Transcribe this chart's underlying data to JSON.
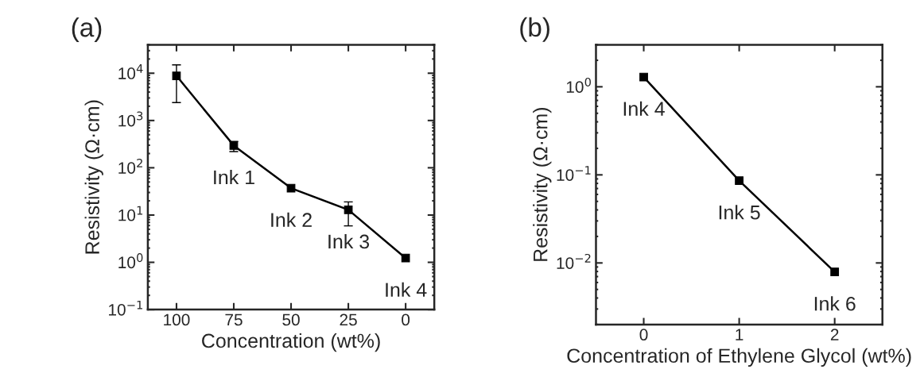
{
  "chart_data": [
    {
      "type": "line",
      "title": "(a)",
      "xlabel": "Concentration (wt%)",
      "ylabel": "Resistivity (Ω·cm)",
      "log": "y",
      "marker": "square",
      "line_style": "solid",
      "grid": false,
      "x": [
        100,
        75,
        50,
        25,
        0
      ],
      "series": [
        {
          "color": "#000000",
          "values": [
            8800,
            295,
            37,
            12.9,
            1.23
          ],
          "errors": [
            [
              2400,
              15000
            ],
            [
              220,
              360
            ],
            null,
            [
              5.9,
              19
            ],
            null
          ]
        }
      ],
      "xlim": [
        112.5,
        -12.5
      ],
      "xticks": [
        100,
        75,
        50,
        25,
        0
      ],
      "ylim": [
        0.1,
        40000
      ],
      "yticks": [
        {
          "value": 0.1,
          "label": "10$^{−1}$"
        },
        {
          "value": 1,
          "label": "10$^{0}$"
        },
        {
          "value": 10,
          "label": "10$^{1}$"
        },
        {
          "value": 100,
          "label": "10$^{2}$"
        },
        {
          "value": 1000,
          "label": "10$^{3}$"
        },
        {
          "value": 10000,
          "label": "10$^{4}$"
        }
      ],
      "annotations": [
        {
          "text": "Ink 1",
          "x": 75,
          "y": 295
        },
        {
          "text": "Ink 2",
          "x": 50,
          "y": 37
        },
        {
          "text": "Ink 3",
          "x": 25,
          "y": 12.9
        },
        {
          "text": "Ink 4",
          "x": 0,
          "y": 1.23
        }
      ]
    },
    {
      "type": "line",
      "title": "(b)",
      "xlabel": "Concentration of Ethylene Glycol (wt%)",
      "ylabel": "Resistivity (Ω·cm)",
      "log": "y",
      "marker": "square",
      "line_style": "solid",
      "grid": false,
      "x": [
        0,
        1,
        2
      ],
      "series": [
        {
          "color": "#000000",
          "values": [
            1.29,
            0.086,
            0.0079
          ]
        }
      ],
      "xlim": [
        -0.5,
        2.5
      ],
      "xticks": [
        0,
        1,
        2
      ],
      "ylim": [
        0.002,
        3
      ],
      "yticks": [
        {
          "value": 0.01,
          "label": "10$^{−2}$"
        },
        {
          "value": 0.1,
          "label": "10$^{−1}$"
        },
        {
          "value": 1,
          "label": "10$^{0}$"
        }
      ],
      "annotations": [
        {
          "text": "Ink 4",
          "x": 0,
          "y": 1.29
        },
        {
          "text": "Ink 5",
          "x": 1,
          "y": 0.086
        },
        {
          "text": "Ink 6",
          "x": 2,
          "y": 0.0079
        }
      ]
    }
  ]
}
